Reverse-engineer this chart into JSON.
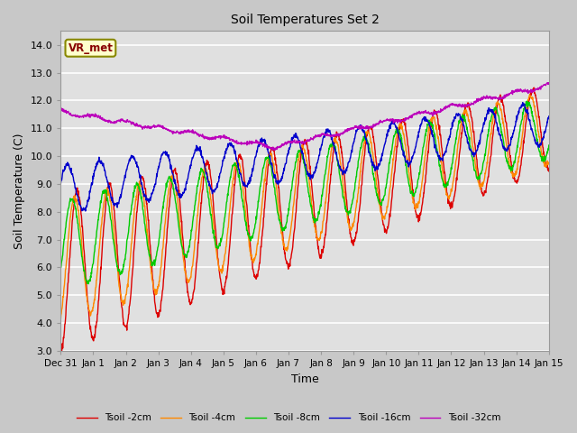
{
  "title": "Soil Temperatures Set 2",
  "xlabel": "Time",
  "ylabel": "Soil Temperature (C)",
  "ylim": [
    3.0,
    14.5
  ],
  "yticks": [
    3.0,
    4.0,
    5.0,
    6.0,
    7.0,
    8.0,
    9.0,
    10.0,
    11.0,
    12.0,
    13.0,
    14.0
  ],
  "fig_bg_color": "#c8c8c8",
  "plot_bg_color": "#e0e0e0",
  "grid_color": "#ffffff",
  "annotation_text": "VR_met",
  "annotation_bg": "#ffffcc",
  "annotation_border": "#888800",
  "colors": {
    "2cm": "#dd0000",
    "4cm": "#ff8800",
    "8cm": "#00cc00",
    "16cm": "#0000cc",
    "32cm": "#bb00bb"
  },
  "labels": {
    "2cm": "Tsoil -2cm",
    "4cm": "Tsoil -4cm",
    "8cm": "Tsoil -8cm",
    "16cm": "Tsoil -16cm",
    "32cm": "Tsoil -32cm"
  },
  "n_points": 1440,
  "days": 15
}
